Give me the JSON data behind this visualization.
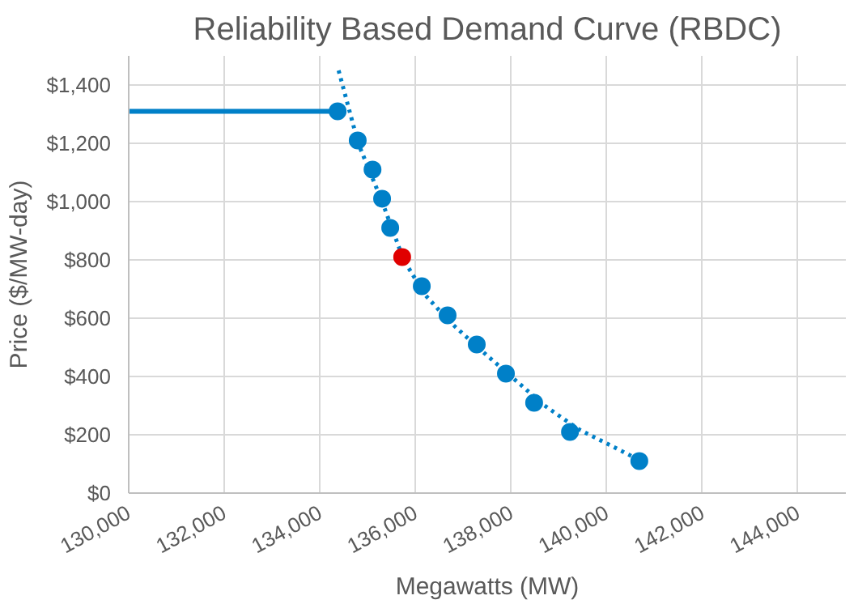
{
  "chart_data": {
    "type": "scatter",
    "title": "Reliability Based Demand Curve (RBDC)",
    "xlabel": "Megawatts (MW)",
    "ylabel": "Price ($/MW-day)",
    "xlim": [
      130000,
      145000
    ],
    "ylim": [
      0,
      1500
    ],
    "xticks": [
      {
        "value": 130000,
        "label": "130,000"
      },
      {
        "value": 132000,
        "label": "132,000"
      },
      {
        "value": 134000,
        "label": "134,000"
      },
      {
        "value": 136000,
        "label": "136,000"
      },
      {
        "value": 138000,
        "label": "138,000"
      },
      {
        "value": 140000,
        "label": "140,000"
      },
      {
        "value": 142000,
        "label": "142,000"
      },
      {
        "value": 144000,
        "label": "144,000"
      }
    ],
    "yticks": [
      {
        "value": 0,
        "label": "$0"
      },
      {
        "value": 200,
        "label": "$200"
      },
      {
        "value": 400,
        "label": "$400"
      },
      {
        "value": 600,
        "label": "$600"
      },
      {
        "value": 800,
        "label": "$800"
      },
      {
        "value": 1000,
        "label": "$1,000"
      },
      {
        "value": 1200,
        "label": "$1,200"
      },
      {
        "value": 1400,
        "label": "$1,400"
      }
    ],
    "grid": true,
    "series": [
      {
        "type": "line",
        "line_style": "solid",
        "color": "#0080c8",
        "x": [
          130000,
          134500
        ],
        "values": [
          1310,
          1310
        ]
      },
      {
        "type": "line",
        "line_style": "dotted",
        "color": "#0080c8",
        "x": [
          134390,
          134800,
          135300,
          135750,
          136200,
          136700,
          137300,
          138000,
          138700,
          139400,
          140000,
          140600
        ],
        "values": [
          1450,
          1200,
          1000,
          800,
          680,
          590,
          500,
          400,
          300,
          220,
          170,
          120
        ]
      },
      {
        "marker": "circle",
        "colors": [
          "#0080c8",
          "#0080c8",
          "#0080c8",
          "#0080c8",
          "#0080c8",
          "#e00000",
          "#0080c8",
          "#0080c8",
          "#0080c8",
          "#0080c8",
          "#0080c8",
          "#0080c8",
          "#0080c8"
        ],
        "x": [
          134370,
          134790,
          135100,
          135300,
          135470,
          135720,
          136130,
          136670,
          137280,
          137890,
          138480,
          139230,
          140680
        ],
        "values": [
          1310,
          1210,
          1110,
          1010,
          910,
          810,
          710,
          610,
          510,
          410,
          310,
          210,
          110
        ]
      }
    ]
  }
}
